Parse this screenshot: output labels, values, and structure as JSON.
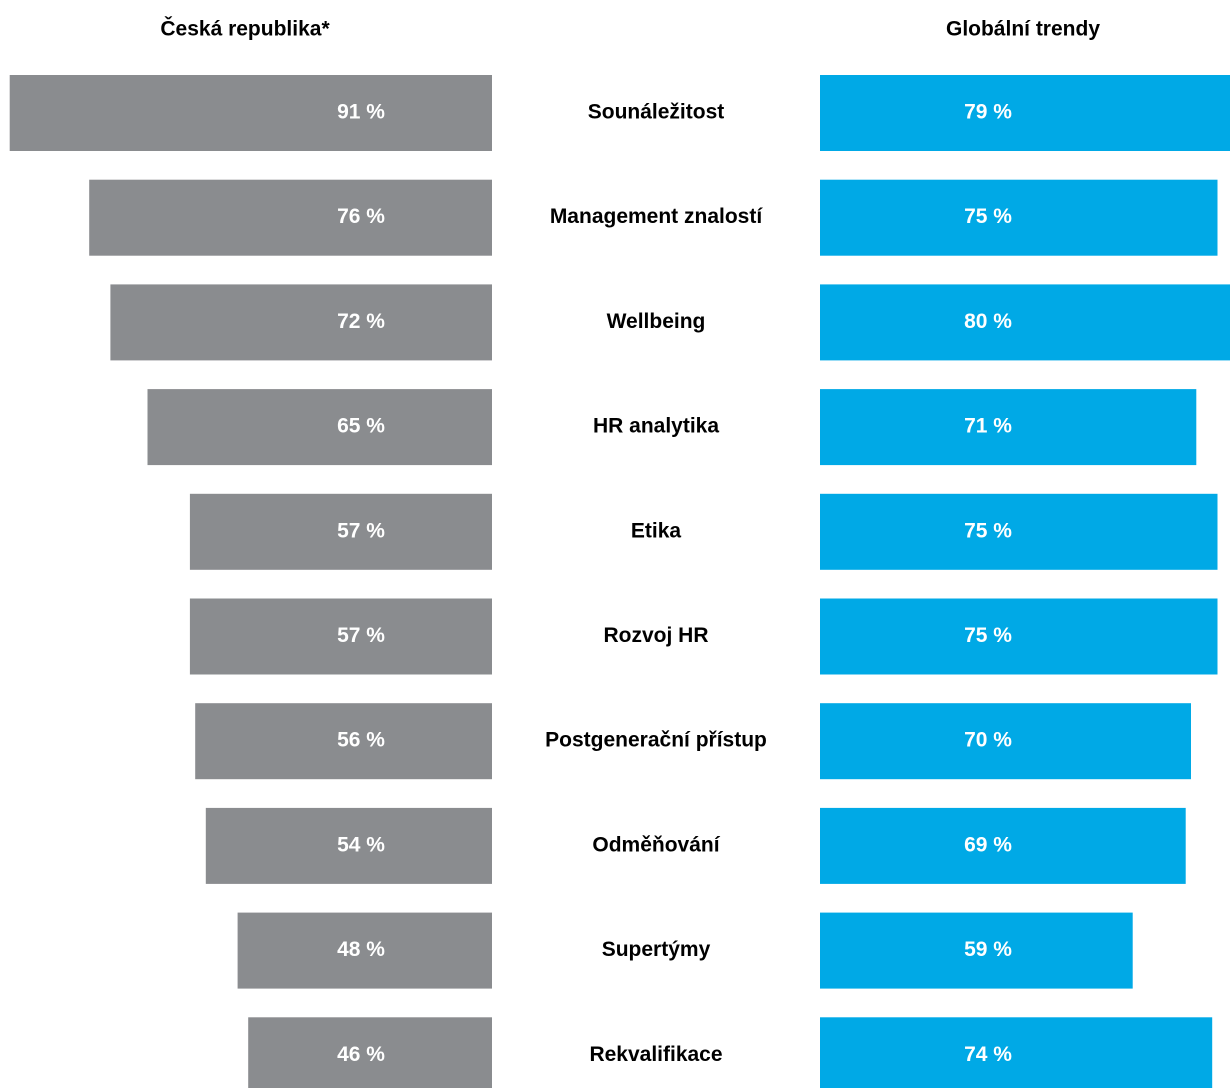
{
  "chart_data": {
    "type": "butterfly",
    "categories": [
      "Sounáležitost",
      "Management znalostí",
      "Wellbeing",
      "HR analytika",
      "Etika",
      "Rozvoj HR",
      "Postgenerační přístup",
      "Odměňování",
      "Supertýmy",
      "Rekvalifikace"
    ],
    "series": [
      {
        "name": "Česká republika*",
        "color": "#8a8c8f",
        "values": [
          91,
          76,
          72,
          65,
          57,
          57,
          56,
          54,
          48,
          46
        ],
        "value_labels": [
          "91 %",
          "76 %",
          "72 %",
          "65 %",
          "57 %",
          "57 %",
          "56 %",
          "54 %",
          "48 %",
          "46 %"
        ]
      },
      {
        "name": "Globální trendy",
        "color": "#00a9e6",
        "values": [
          79,
          75,
          80,
          71,
          75,
          75,
          70,
          69,
          59,
          74
        ],
        "value_labels": [
          "79 %",
          "75 %",
          "80 %",
          "71 %",
          "75 %",
          "75 %",
          "70 %",
          "69 %",
          "59 %",
          "74 %"
        ]
      }
    ]
  }
}
